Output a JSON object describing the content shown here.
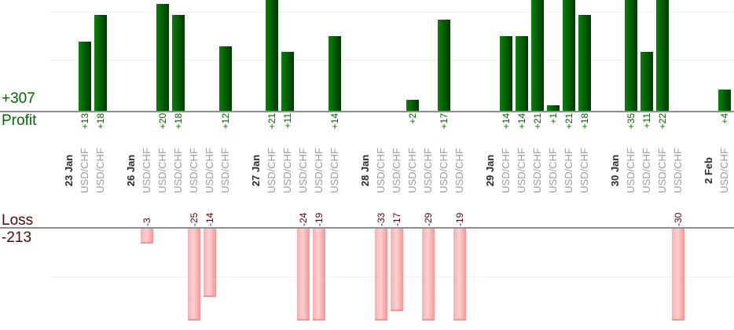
{
  "chart_data": {
    "type": "bar",
    "orientation": "vertical",
    "description": "Per-trade profit (top bars) and loss (bottom bars) grouped by date",
    "top_axis": {
      "series_label": "Profit",
      "total_label": "+307"
    },
    "bottom_axis": {
      "series_label": "Loss",
      "total_label": "-213"
    },
    "value_label_format": "signed integer, rotated 90deg CCW",
    "groups": [
      {
        "date": "23 Jan",
        "trades": [
          {
            "symbol": "USD/CHF",
            "value": 13
          },
          {
            "symbol": "USD/CHF",
            "value": 18
          }
        ]
      },
      {
        "date": "26 Jan",
        "trades": [
          {
            "symbol": "USD/CHF",
            "value": -3
          },
          {
            "symbol": "USD/CHF",
            "value": 20
          },
          {
            "symbol": "USD/CHF",
            "value": 18
          },
          {
            "symbol": "USD/CHF",
            "value": -25
          },
          {
            "symbol": "USD/CHF",
            "value": -14
          },
          {
            "symbol": "USD/CHF",
            "value": 12
          }
        ]
      },
      {
        "date": "27 Jan",
        "trades": [
          {
            "symbol": "USD/CHF",
            "value": 21
          },
          {
            "symbol": "USD/CHF",
            "value": 11
          },
          {
            "symbol": "USD/CHF",
            "value": -24
          },
          {
            "symbol": "USD/CHF",
            "value": -19
          },
          {
            "symbol": "USD/CHF",
            "value": 14
          }
        ]
      },
      {
        "date": "28 Jan",
        "trades": [
          {
            "symbol": "USD/CHF",
            "value": -33
          },
          {
            "symbol": "USD/CHF",
            "value": -17
          },
          {
            "symbol": "USD/CHF",
            "value": 2
          },
          {
            "symbol": "USD/CHF",
            "value": -29
          },
          {
            "symbol": "USD/CHF",
            "value": 17
          },
          {
            "symbol": "USD/CHF",
            "value": -19
          }
        ]
      },
      {
        "date": "29 Jan",
        "trades": [
          {
            "symbol": "USD/CHF",
            "value": 14
          },
          {
            "symbol": "USD/CHF",
            "value": 14
          },
          {
            "symbol": "USD/CHF",
            "value": 21
          },
          {
            "symbol": "USD/CHF",
            "value": 1
          },
          {
            "symbol": "USD/CHF",
            "value": 21
          },
          {
            "symbol": "USD/CHF",
            "value": 18
          }
        ]
      },
      {
        "date": "30 Jan",
        "trades": [
          {
            "symbol": "USD/CHF",
            "value": 35
          },
          {
            "symbol": "USD/CHF",
            "value": 11
          },
          {
            "symbol": "USD/CHF",
            "value": 22
          },
          {
            "symbol": "USD/CHF",
            "value": -30
          }
        ]
      },
      {
        "date": "2 Feb",
        "trades": [
          {
            "symbol": "USD/CHF",
            "value": 4
          }
        ]
      }
    ],
    "layout_hints": {
      "gridlines": "horizontal, light gray",
      "profit_bars_clipped_at_top": true,
      "loss_bars_clipped_at_bottom": true
    }
  },
  "colors": {
    "profit_text": "#006600",
    "loss_text": "#4d0a0a",
    "date_text": "#2a2a2a",
    "symbol_text": "#9b9b9b",
    "axis_line": "#8f8f8f",
    "gridline": "#f0f0f0",
    "profit_bar_light": "#0c800c",
    "profit_bar_mid": "#025902",
    "profit_bar_dark": "#003800",
    "loss_bar_left": "#fbadad",
    "loss_bar_light": "#ffd0d0",
    "loss_bar_right": "#f49595",
    "loss_bar_edge": "#ee9595"
  }
}
